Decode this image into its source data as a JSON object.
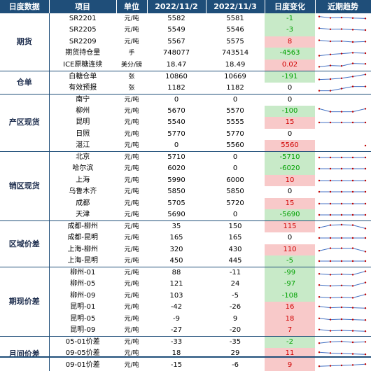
{
  "header": {
    "category": "日度数据",
    "item": "项目",
    "unit": "单位",
    "date1": "2022/11/2",
    "date2": "2022/11/3",
    "change": "日度变化",
    "trend": "近期趋势"
  },
  "colors": {
    "header_bg": "#1f4e79",
    "positive_bg": "#f8c9c9",
    "negative_bg": "#c8eac8",
    "positive_text": "#d00000",
    "negative_text": "#00a000"
  },
  "groups": [
    {
      "name": "期货",
      "rows": [
        {
          "item": "SR2201",
          "unit": "元/吨",
          "v1": "5582",
          "v2": "5581",
          "chg": "-1",
          "dir": "neg",
          "spark": [
            0.78,
            0.62,
            0.66,
            0.6,
            0.55
          ]
        },
        {
          "item": "SR2205",
          "unit": "元/吨",
          "v1": "5549",
          "v2": "5546",
          "chg": "-3",
          "dir": "neg",
          "spark": [
            0.72,
            0.6,
            0.62,
            0.55,
            0.5
          ]
        },
        {
          "item": "SR2209",
          "unit": "元/吨",
          "v1": "5567",
          "v2": "5575",
          "chg": "8",
          "dir": "pos",
          "spark": [
            0.7,
            0.58,
            0.6,
            0.5,
            0.55
          ]
        },
        {
          "item": "期货持仓量",
          "unit": "手",
          "v1": "748077",
          "v2": "743514",
          "chg": "-4563",
          "dir": "neg",
          "spark": [
            0.2,
            0.35,
            0.45,
            0.55,
            0.5
          ]
        },
        {
          "item": "ICE原糖连续",
          "unit": "美分/磅",
          "v1": "18.47",
          "v2": "18.49",
          "chg": "0.02",
          "dir": "pos",
          "spark": [
            0.3,
            0.45,
            0.4,
            0.7,
            0.65
          ]
        }
      ]
    },
    {
      "name": "仓单",
      "rows": [
        {
          "item": "白糖仓单",
          "unit": "张",
          "v1": "10860",
          "v2": "10669",
          "chg": "-191",
          "dir": "neg",
          "spark": [
            0.2,
            0.25,
            0.35,
            0.55,
            0.8
          ]
        },
        {
          "item": "有效预报",
          "unit": "张",
          "v1": "1182",
          "v2": "1182",
          "chg": "0",
          "dir": "zero",
          "spark": [
            0.2,
            0.2,
            0.45,
            0.7,
            0.7
          ]
        }
      ]
    },
    {
      "name": "产区现货",
      "rows": [
        {
          "item": "南宁",
          "unit": "元/吨",
          "v1": "0",
          "v2": "0",
          "chg": "0",
          "dir": "zero",
          "spark": []
        },
        {
          "item": "柳州",
          "unit": "元/吨",
          "v1": "5670",
          "v2": "5570",
          "chg": "-100",
          "dir": "neg",
          "spark": [
            0.8,
            0.45,
            0.45,
            0.45,
            0.8
          ]
        },
        {
          "item": "昆明",
          "unit": "元/吨",
          "v1": "5540",
          "v2": "5555",
          "chg": "15",
          "dir": "pos",
          "spark": [
            0.5,
            0.5,
            0.5,
            0.5,
            0.5
          ]
        },
        {
          "item": "日照",
          "unit": "元/吨",
          "v1": "5770",
          "v2": "5770",
          "chg": "0",
          "dir": "zero",
          "spark": []
        },
        {
          "item": "湛江",
          "unit": "元/吨",
          "v1": "0",
          "v2": "5560",
          "chg": "5560",
          "dir": "pos",
          "spark": [
            null,
            null,
            null,
            null,
            0.5
          ]
        }
      ]
    },
    {
      "name": "销区现货",
      "rows": [
        {
          "item": "北京",
          "unit": "元/吨",
          "v1": "5710",
          "v2": "0",
          "chg": "-5710",
          "dir": "neg",
          "spark": [
            0.5,
            0.5,
            0.5,
            0.5,
            0.5
          ]
        },
        {
          "item": "哈尔滨",
          "unit": "元/吨",
          "v1": "6020",
          "v2": "0",
          "chg": "-6020",
          "dir": "neg",
          "spark": [
            0.5,
            0.5,
            0.5,
            0.5,
            0.5
          ]
        },
        {
          "item": "上海",
          "unit": "元/吨",
          "v1": "5990",
          "v2": "6000",
          "chg": "10",
          "dir": "pos",
          "spark": [
            0.5,
            0.5,
            0.5,
            0.5,
            0.5
          ]
        },
        {
          "item": "乌鲁木齐",
          "unit": "元/吨",
          "v1": "5850",
          "v2": "5850",
          "chg": "0",
          "dir": "zero",
          "spark": [
            0.5,
            0.5,
            0.5,
            0.5,
            0.5
          ]
        },
        {
          "item": "成都",
          "unit": "元/吨",
          "v1": "5705",
          "v2": "5720",
          "chg": "15",
          "dir": "pos",
          "spark": [
            0.5,
            0.5,
            0.5,
            0.5,
            0.5
          ]
        },
        {
          "item": "天津",
          "unit": "元/吨",
          "v1": "5690",
          "v2": "0",
          "chg": "-5690",
          "dir": "neg",
          "spark": [
            0.5,
            0.5,
            0.5,
            0.5,
            0.5
          ]
        }
      ]
    },
    {
      "name": "区域价差",
      "rows": [
        {
          "item": "成都-柳州",
          "unit": "元/吨",
          "v1": "35",
          "v2": "150",
          "chg": "115",
          "dir": "pos",
          "spark": [
            0.4,
            0.7,
            0.75,
            0.7,
            0.3
          ]
        },
        {
          "item": "成都-昆明",
          "unit": "元/吨",
          "v1": "165",
          "v2": "165",
          "chg": "0",
          "dir": "zero",
          "spark": [
            0.5,
            0.5,
            0.5,
            0.5,
            0.5
          ]
        },
        {
          "item": "上海-柳州",
          "unit": "元/吨",
          "v1": "320",
          "v2": "430",
          "chg": "110",
          "dir": "pos",
          "spark": [
            0.4,
            0.7,
            0.7,
            0.7,
            0.3
          ]
        },
        {
          "item": "上海-昆明",
          "unit": "元/吨",
          "v1": "450",
          "v2": "445",
          "chg": "-5",
          "dir": "neg",
          "spark": [
            0.5,
            0.5,
            0.5,
            0.5,
            0.5
          ]
        }
      ]
    },
    {
      "name": "期现价差",
      "rows": [
        {
          "item": "柳州-01",
          "unit": "元/吨",
          "v1": "88",
          "v2": "-11",
          "chg": "-99",
          "dir": "neg",
          "spark": [
            0.4,
            0.3,
            0.35,
            0.3,
            0.7
          ]
        },
        {
          "item": "柳州-05",
          "unit": "元/吨",
          "v1": "121",
          "v2": "24",
          "chg": "-97",
          "dir": "neg",
          "spark": [
            0.4,
            0.3,
            0.35,
            0.3,
            0.7
          ]
        },
        {
          "item": "柳州-09",
          "unit": "元/吨",
          "v1": "103",
          "v2": "-5",
          "chg": "-108",
          "dir": "neg",
          "spark": [
            0.4,
            0.3,
            0.35,
            0.3,
            0.7
          ]
        },
        {
          "item": "昆明-01",
          "unit": "元/吨",
          "v1": "-42",
          "v2": "-26",
          "chg": "16",
          "dir": "pos",
          "spark": [
            0.6,
            0.45,
            0.5,
            0.45,
            0.4
          ]
        },
        {
          "item": "昆明-05",
          "unit": "元/吨",
          "v1": "-9",
          "v2": "9",
          "chg": "18",
          "dir": "pos",
          "spark": [
            0.6,
            0.45,
            0.5,
            0.45,
            0.4
          ]
        },
        {
          "item": "昆明-09",
          "unit": "元/吨",
          "v1": "-27",
          "v2": "-20",
          "chg": "7",
          "dir": "pos",
          "spark": [
            0.6,
            0.45,
            0.5,
            0.45,
            0.4
          ]
        }
      ]
    },
    {
      "name": "月间价差",
      "rows": [
        {
          "item": "05-01价差",
          "unit": "元/吨",
          "v1": "-33",
          "v2": "-35",
          "chg": "-2",
          "dir": "neg",
          "spark": [
            0.4,
            0.55,
            0.6,
            0.5,
            0.55
          ]
        },
        {
          "item": "09-05价差",
          "unit": "元/吨",
          "v1": "18",
          "v2": "29",
          "chg": "11",
          "dir": "pos",
          "spark": [
            0.65,
            0.55,
            0.5,
            0.45,
            0.4
          ]
        },
        {
          "item": "09-01价差",
          "unit": "元/吨",
          "v1": "-15",
          "v2": "-6",
          "chg": "9",
          "dir": "pos",
          "spark": [
            0.4,
            0.45,
            0.5,
            0.55,
            0.65
          ]
        }
      ]
    }
  ]
}
